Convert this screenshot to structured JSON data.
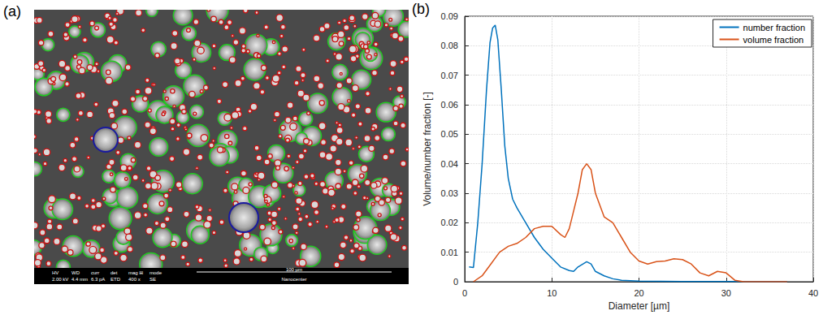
{
  "image_panel": {
    "panel_label": "(a)",
    "info_bar": [
      {
        "label": "HV",
        "value": "2.00 kV"
      },
      {
        "label": "WD",
        "value": "4.4 mm"
      },
      {
        "label": "curr",
        "value": "6.3 pA"
      },
      {
        "label": "det",
        "value": "ETD"
      },
      {
        "label": "mag ⊞",
        "value": "400 x"
      },
      {
        "label": "mode",
        "value": "SE"
      }
    ],
    "scale_bar": "100 µm",
    "footer": "Nanocenter"
  },
  "chart_data": {
    "type": "line",
    "annotations": [
      "(b)"
    ],
    "x_label": "Diameter [µm]",
    "y_label": "Volume/number fraction [-]",
    "xlim": [
      0,
      40
    ],
    "xticks": [
      0,
      10,
      20,
      30,
      40
    ],
    "ylim": [
      0,
      0.09
    ],
    "yticks": [
      0,
      0.01,
      0.02,
      0.03,
      0.04,
      0.05,
      0.06,
      0.07,
      0.08,
      0.09
    ],
    "grid": true,
    "legend": "upper right",
    "series": [
      {
        "name": "number fraction",
        "color": "#0072bd",
        "x": [
          0.5,
          1.0,
          1.5,
          2.0,
          2.5,
          2.9,
          3.2,
          3.5,
          3.8,
          4.2,
          4.6,
          5.0,
          5.5,
          6.0,
          7.0,
          8.0,
          9.0,
          10.0,
          11.0,
          12.0,
          12.5,
          13.0,
          14.0,
          14.5,
          15.0,
          16.0,
          17.0,
          18.0,
          20.0,
          25.0,
          30.0,
          37.0
        ],
        "values": [
          0.005,
          0.0048,
          0.02,
          0.04,
          0.065,
          0.081,
          0.086,
          0.087,
          0.082,
          0.065,
          0.046,
          0.035,
          0.028,
          0.025,
          0.02,
          0.015,
          0.011,
          0.008,
          0.005,
          0.0038,
          0.0035,
          0.005,
          0.0068,
          0.006,
          0.0035,
          0.002,
          0.001,
          0.0005,
          0.0002,
          0.0001,
          5e-05,
          5e-05
        ]
      },
      {
        "name": "volume fraction",
        "color": "#d95319",
        "x": [
          1,
          2,
          3,
          4,
          5,
          6,
          7,
          8,
          9,
          10,
          11,
          11.5,
          12,
          13,
          13.5,
          14,
          14.5,
          15,
          16,
          17,
          18,
          19,
          20,
          21,
          22,
          23,
          24,
          25,
          26,
          27,
          28,
          29,
          30,
          31,
          32,
          37
        ],
        "values": [
          0,
          0.002,
          0.006,
          0.01,
          0.012,
          0.013,
          0.015,
          0.018,
          0.0188,
          0.0188,
          0.016,
          0.015,
          0.018,
          0.03,
          0.038,
          0.04,
          0.038,
          0.03,
          0.022,
          0.02,
          0.015,
          0.01,
          0.007,
          0.006,
          0.0068,
          0.007,
          0.0078,
          0.0075,
          0.006,
          0.003,
          0.002,
          0.0035,
          0.003,
          0.0005,
          0,
          0
        ]
      }
    ]
  }
}
